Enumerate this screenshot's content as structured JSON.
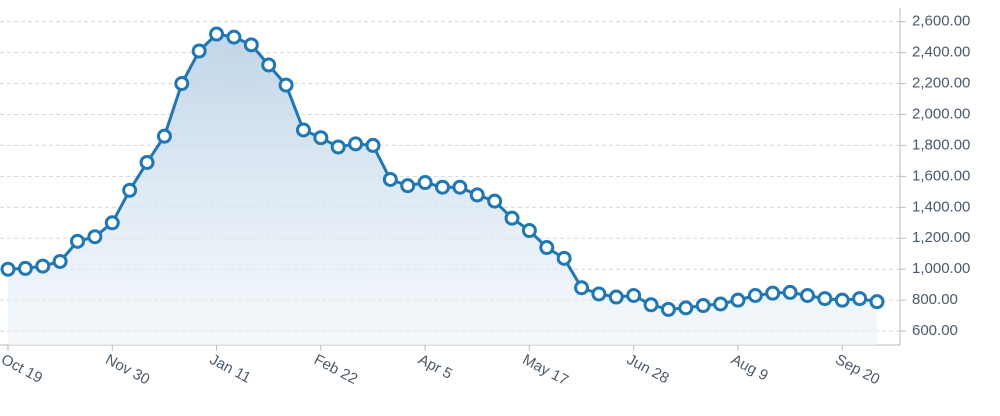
{
  "chart_data": {
    "type": "area",
    "categories": [
      "Oct 19",
      null,
      null,
      null,
      null,
      null,
      "Nov 30",
      null,
      null,
      null,
      null,
      null,
      "Jan 11",
      null,
      null,
      null,
      null,
      null,
      "Feb 22",
      null,
      null,
      null,
      null,
      null,
      "Apr 5",
      null,
      null,
      null,
      null,
      null,
      "May 17",
      null,
      null,
      null,
      null,
      null,
      "Jun 28",
      null,
      null,
      null,
      null,
      null,
      "Aug 9",
      null,
      null,
      null,
      null,
      null,
      "Sep 20",
      null,
      null
    ],
    "series": [
      {
        "color": "#1f77b4",
        "values": [
          1000,
          1005,
          1020,
          1050,
          1180,
          1210,
          1300,
          1510,
          1690,
          1860,
          2200,
          2410,
          2520,
          2500,
          2450,
          2320,
          2190,
          1900,
          1850,
          1790,
          1810,
          1800,
          1580,
          1540,
          1560,
          1530,
          1530,
          1480,
          1440,
          1330,
          1250,
          1140,
          1070,
          880,
          840,
          820,
          830,
          770,
          740,
          750,
          765,
          775,
          800,
          830,
          845,
          850,
          830,
          810,
          800,
          810,
          790
        ]
      }
    ],
    "ylim": [
      510,
      2740
    ],
    "yticks": [
      {
        "value": 600,
        "label": "600.00"
      },
      {
        "value": 800,
        "label": "800.00"
      },
      {
        "value": 1000,
        "label": "1,000.00"
      },
      {
        "value": 1200,
        "label": "1,200.00"
      },
      {
        "value": 1400,
        "label": "1,400.00"
      },
      {
        "value": 1600,
        "label": "1,600.00"
      },
      {
        "value": 1800,
        "label": "1,800.00"
      },
      {
        "value": 2000,
        "label": "2,000.00"
      },
      {
        "value": 2200,
        "label": "2,200.00"
      },
      {
        "value": 2400,
        "label": "2,400.00"
      },
      {
        "value": 2600,
        "label": "2,600.00"
      }
    ],
    "grid": true
  }
}
